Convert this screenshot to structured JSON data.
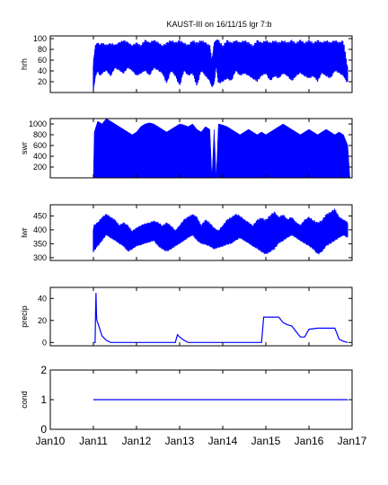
{
  "title": "KAUST-III on 16/11/15 lgr 7:b",
  "colors": {
    "series": "#0000ff",
    "axes": "#000000"
  },
  "chart_data": [
    {
      "type": "line",
      "ylabel": "hrh",
      "ylim": [
        0,
        105
      ],
      "yticks": [
        20,
        40,
        60,
        80,
        100
      ],
      "xlim": [
        "Jan10",
        "Jan17"
      ],
      "xticks": [],
      "series": [
        {
          "x": [
            1.0,
            1.05,
            1.1,
            1.15,
            1.2,
            1.3,
            1.4,
            1.5,
            1.6,
            1.7,
            1.8,
            1.9,
            2.0,
            2.1,
            2.2,
            2.3,
            2.4,
            2.5,
            2.6,
            2.7,
            2.8,
            2.9,
            3.0,
            3.1,
            3.2,
            3.3,
            3.4,
            3.5,
            3.6,
            3.7,
            3.75,
            3.8,
            3.85,
            3.9,
            4.0,
            4.1,
            4.2,
            4.3,
            4.4,
            4.5,
            4.6,
            4.7,
            4.8,
            4.9,
            5.0,
            5.1,
            5.2,
            5.3,
            5.4,
            5.5,
            5.6,
            5.7,
            5.8,
            5.9,
            6.0,
            6.1,
            6.2,
            6.3,
            6.4,
            6.5,
            6.6,
            6.7,
            6.8,
            6.9
          ],
          "y_low": [
            5,
            30,
            40,
            30,
            35,
            40,
            30,
            45,
            40,
            35,
            45,
            40,
            30,
            35,
            40,
            30,
            45,
            40,
            35,
            15,
            40,
            30,
            10,
            40,
            30,
            35,
            10,
            40,
            30,
            20,
            10,
            15,
            50,
            15,
            20,
            25,
            20,
            40,
            30,
            35,
            30,
            25,
            20,
            30,
            35,
            20,
            30,
            25,
            35,
            30,
            20,
            30,
            35,
            30,
            25,
            30,
            20,
            35,
            30,
            25,
            40,
            35,
            30,
            15
          ],
          "y_high": [
            60,
            90,
            95,
            90,
            95,
            90,
            95,
            90,
            95,
            100,
            95,
            90,
            95,
            90,
            100,
            95,
            100,
            95,
            90,
            95,
            100,
            95,
            100,
            95,
            90,
            100,
            95,
            100,
            95,
            90,
            60,
            95,
            100,
            100,
            90,
            100,
            95,
            100,
            95,
            100,
            95,
            90,
            100,
            95,
            100,
            95,
            100,
            95,
            100,
            95,
            100,
            95,
            100,
            95,
            100,
            95,
            100,
            95,
            100,
            95,
            100,
            95,
            100,
            45
          ]
        }
      ]
    },
    {
      "type": "area",
      "ylabel": "swr",
      "ylim": [
        0,
        1100
      ],
      "yticks": [
        200,
        400,
        600,
        800,
        1000
      ],
      "xlim": [
        "Jan10",
        "Jan17"
      ],
      "xticks": [],
      "series": [
        {
          "x": [
            1.0,
            1.02,
            1.1,
            1.2,
            1.3,
            1.4,
            1.5,
            1.6,
            1.7,
            1.8,
            1.9,
            2.0,
            2.1,
            2.2,
            2.3,
            2.4,
            2.5,
            2.6,
            2.7,
            2.8,
            2.9,
            3.0,
            3.1,
            3.2,
            3.3,
            3.4,
            3.5,
            3.6,
            3.7,
            3.75,
            3.8,
            3.85,
            3.9,
            4.0,
            4.1,
            4.2,
            4.3,
            4.4,
            4.5,
            4.6,
            4.7,
            4.8,
            4.9,
            5.0,
            5.1,
            5.2,
            5.3,
            5.4,
            5.5,
            5.6,
            5.7,
            5.8,
            5.9,
            6.0,
            6.1,
            6.2,
            6.3,
            6.4,
            6.5,
            6.6,
            6.7,
            6.8,
            6.9,
            6.95
          ],
          "y": [
            0,
            850,
            1050,
            1000,
            1100,
            1050,
            1000,
            950,
            900,
            850,
            800,
            850,
            950,
            1000,
            1020,
            1000,
            950,
            900,
            850,
            900,
            950,
            1000,
            980,
            950,
            1000,
            900,
            850,
            950,
            900,
            0,
            900,
            0,
            1000,
            980,
            950,
            900,
            850,
            800,
            850,
            900,
            850,
            800,
            850,
            800,
            850,
            900,
            950,
            1000,
            950,
            900,
            850,
            800,
            850,
            900,
            850,
            800,
            850,
            900,
            850,
            800,
            850,
            800,
            600,
            0
          ]
        }
      ]
    },
    {
      "type": "line",
      "ylabel": "lwr",
      "ylim": [
        290,
        490
      ],
      "yticks": [
        300,
        350,
        400,
        450
      ],
      "xlim": [
        "Jan10",
        "Jan17"
      ],
      "xticks": [],
      "series": [
        {
          "x": [
            1.0,
            1.1,
            1.2,
            1.3,
            1.4,
            1.5,
            1.6,
            1.7,
            1.8,
            1.9,
            2.0,
            2.1,
            2.2,
            2.3,
            2.4,
            2.5,
            2.6,
            2.7,
            2.8,
            2.9,
            3.0,
            3.1,
            3.2,
            3.3,
            3.4,
            3.5,
            3.6,
            3.7,
            3.8,
            3.9,
            4.0,
            4.1,
            4.2,
            4.3,
            4.4,
            4.5,
            4.6,
            4.7,
            4.8,
            4.9,
            5.0,
            5.1,
            5.2,
            5.3,
            5.4,
            5.5,
            5.6,
            5.7,
            5.8,
            5.9,
            6.0,
            6.1,
            6.2,
            6.3,
            6.4,
            6.5,
            6.6,
            6.7,
            6.8,
            6.9
          ],
          "y_low": [
            320,
            340,
            360,
            380,
            370,
            360,
            350,
            340,
            320,
            330,
            340,
            345,
            350,
            355,
            360,
            340,
            330,
            320,
            330,
            340,
            350,
            360,
            370,
            380,
            360,
            350,
            345,
            340,
            330,
            335,
            340,
            345,
            350,
            360,
            370,
            360,
            350,
            340,
            330,
            320,
            310,
            320,
            330,
            350,
            360,
            370,
            380,
            370,
            360,
            350,
            340,
            330,
            310,
            320,
            340,
            350,
            360,
            370,
            380,
            370
          ],
          "y_high": [
            420,
            430,
            450,
            460,
            450,
            440,
            420,
            430,
            420,
            400,
            410,
            420,
            425,
            430,
            435,
            430,
            420,
            430,
            420,
            400,
            420,
            440,
            450,
            460,
            450,
            420,
            440,
            430,
            410,
            400,
            420,
            440,
            450,
            460,
            455,
            440,
            430,
            420,
            440,
            450,
            440,
            460,
            470,
            450,
            460,
            440,
            450,
            430,
            420,
            440,
            450,
            440,
            430,
            440,
            460,
            470,
            480,
            450,
            440,
            430
          ]
        }
      ]
    },
    {
      "type": "line",
      "ylabel": "precip",
      "ylim": [
        -3,
        50
      ],
      "yticks": [
        0,
        20,
        40
      ],
      "xlim": [
        "Jan10",
        "Jan17"
      ],
      "xticks": [],
      "series": [
        {
          "x": [
            1.0,
            1.04,
            1.05,
            1.06,
            1.07,
            1.08,
            1.1,
            1.15,
            1.2,
            1.3,
            1.4,
            1.5,
            2.0,
            2.5,
            2.9,
            2.95,
            3.0,
            3.1,
            3.2,
            3.3,
            4.0,
            4.5,
            4.8,
            4.9,
            4.95,
            5.0,
            5.3,
            5.4,
            5.5,
            5.6,
            5.7,
            5.8,
            5.9,
            6.0,
            6.2,
            6.4,
            6.5,
            6.6,
            6.7,
            6.8,
            6.9
          ],
          "y": [
            0,
            0,
            27,
            45,
            26,
            20,
            18,
            12,
            6,
            2,
            0,
            0,
            0,
            0,
            0,
            7,
            5,
            2,
            0,
            0,
            0,
            0,
            0,
            0,
            23,
            23,
            23,
            18,
            16,
            15,
            10,
            5,
            5,
            12,
            13,
            13,
            13,
            13,
            3,
            1,
            0
          ]
        }
      ]
    },
    {
      "type": "line",
      "ylabel": "cond",
      "ylim": [
        0,
        2
      ],
      "yticks": [
        0,
        1,
        2
      ],
      "xlim": [
        "Jan10",
        "Jan17"
      ],
      "xticks": [
        "Jan10",
        "Jan11",
        "Jan12",
        "Jan13",
        "Jan14",
        "Jan15",
        "Jan16",
        "Jan17"
      ],
      "series": [
        {
          "x": [
            1.0,
            6.9
          ],
          "y": [
            1,
            1
          ]
        }
      ]
    }
  ]
}
